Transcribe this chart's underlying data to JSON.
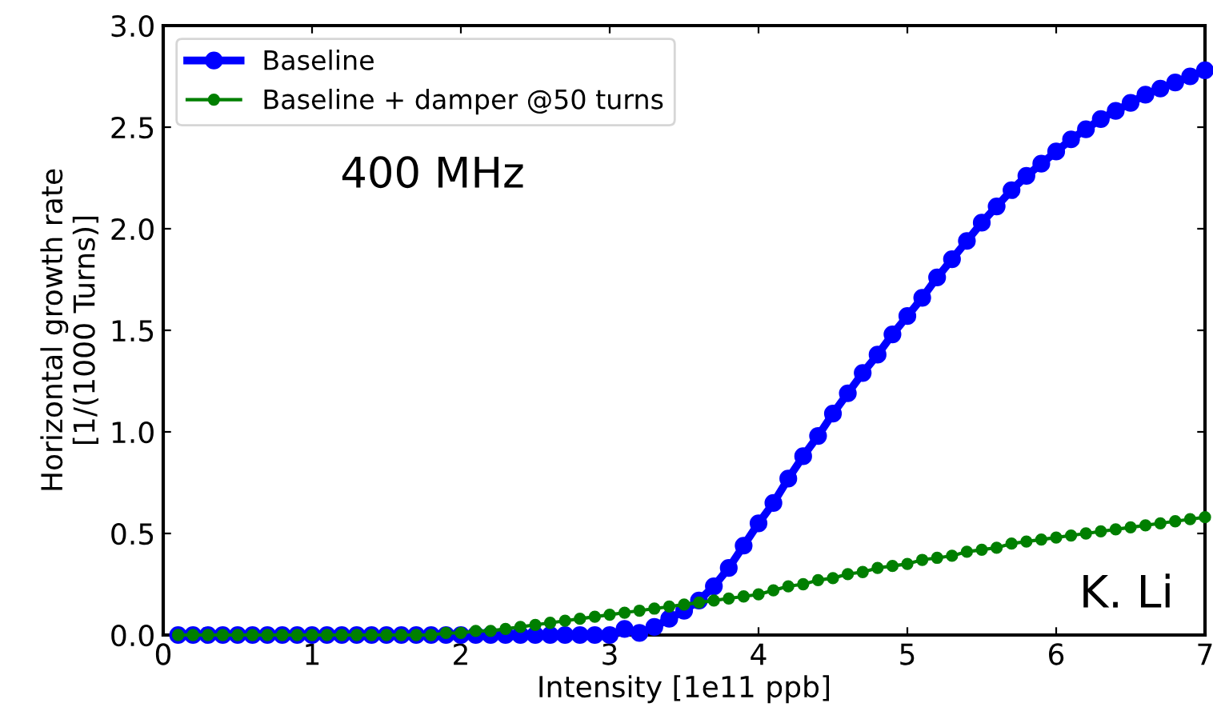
{
  "chart_data": {
    "type": "line",
    "xlabel": "Intensity [1e11 ppb]",
    "ylabel": "Horizontal growth rate\n[1/(1000 Turns)]",
    "x": [
      0.1,
      0.2,
      0.3,
      0.4,
      0.5,
      0.6,
      0.7,
      0.8,
      0.9,
      1.0,
      1.1,
      1.2,
      1.3,
      1.4,
      1.5,
      1.6,
      1.7,
      1.8,
      1.9,
      2.0,
      2.1,
      2.2,
      2.3,
      2.4,
      2.5,
      2.6,
      2.7,
      2.8,
      2.9,
      3.0,
      3.1,
      3.2,
      3.3,
      3.4,
      3.5,
      3.6,
      3.7,
      3.8,
      3.9,
      4.0,
      4.1,
      4.2,
      4.3,
      4.4,
      4.5,
      4.6,
      4.7,
      4.8,
      4.9,
      5.0,
      5.1,
      5.2,
      5.3,
      5.4,
      5.5,
      5.6,
      5.7,
      5.8,
      5.9,
      6.0,
      6.1,
      6.2,
      6.3,
      6.4,
      6.5,
      6.6,
      6.7,
      6.8,
      6.9,
      7.0
    ],
    "series": [
      {
        "name": "Baseline",
        "color": "#0000ff",
        "values": [
          0,
          0,
          0,
          0,
          0,
          0,
          0,
          0,
          0,
          0,
          0,
          0,
          0,
          0,
          0,
          0,
          0,
          0,
          0,
          0,
          0,
          0,
          0,
          0,
          0,
          0,
          0,
          0,
          0,
          0.0,
          0.03,
          0.01,
          0.04,
          0.08,
          0.12,
          0.17,
          0.24,
          0.33,
          0.44,
          0.55,
          0.65,
          0.77,
          0.88,
          0.98,
          1.09,
          1.19,
          1.29,
          1.38,
          1.48,
          1.57,
          1.66,
          1.76,
          1.85,
          1.94,
          2.03,
          2.11,
          2.19,
          2.26,
          2.32,
          2.38,
          2.44,
          2.49,
          2.54,
          2.58,
          2.62,
          2.66,
          2.69,
          2.72,
          2.75,
          2.78
        ]
      },
      {
        "name": "Baseline + damper @50 turns",
        "color": "#007f00",
        "values": [
          0,
          0,
          0,
          0,
          0,
          0,
          0,
          0,
          0,
          0,
          0,
          0,
          0,
          0,
          0,
          0,
          0,
          0,
          0.01,
          0.01,
          0.02,
          0.02,
          0.03,
          0.04,
          0.05,
          0.06,
          0.07,
          0.08,
          0.09,
          0.1,
          0.11,
          0.12,
          0.13,
          0.14,
          0.15,
          0.16,
          0.17,
          0.18,
          0.19,
          0.2,
          0.22,
          0.24,
          0.25,
          0.27,
          0.28,
          0.3,
          0.31,
          0.33,
          0.34,
          0.35,
          0.37,
          0.38,
          0.39,
          0.41,
          0.42,
          0.43,
          0.45,
          0.46,
          0.47,
          0.48,
          0.49,
          0.5,
          0.51,
          0.52,
          0.53,
          0.54,
          0.55,
          0.56,
          0.57,
          0.58
        ]
      }
    ],
    "xlim": [
      0,
      7
    ],
    "ylim": [
      0,
      3.0
    ],
    "xticks": [
      0,
      1,
      2,
      3,
      4,
      5,
      6,
      7
    ],
    "yticks": [
      {
        "value": 0,
        "label": "0.0"
      },
      {
        "value": 0.5,
        "label": "0.5"
      },
      {
        "value": 1,
        "label": "1.0"
      },
      {
        "value": 1.5,
        "label": "1.5"
      },
      {
        "value": 2,
        "label": "2.0"
      },
      {
        "value": 2.5,
        "label": "2.5"
      },
      {
        "value": 3,
        "label": "3.0"
      }
    ],
    "annotations": [
      "400 MHz",
      "K. Li"
    ],
    "legend": "top left",
    "marker": "circle",
    "line_style": "solid"
  }
}
